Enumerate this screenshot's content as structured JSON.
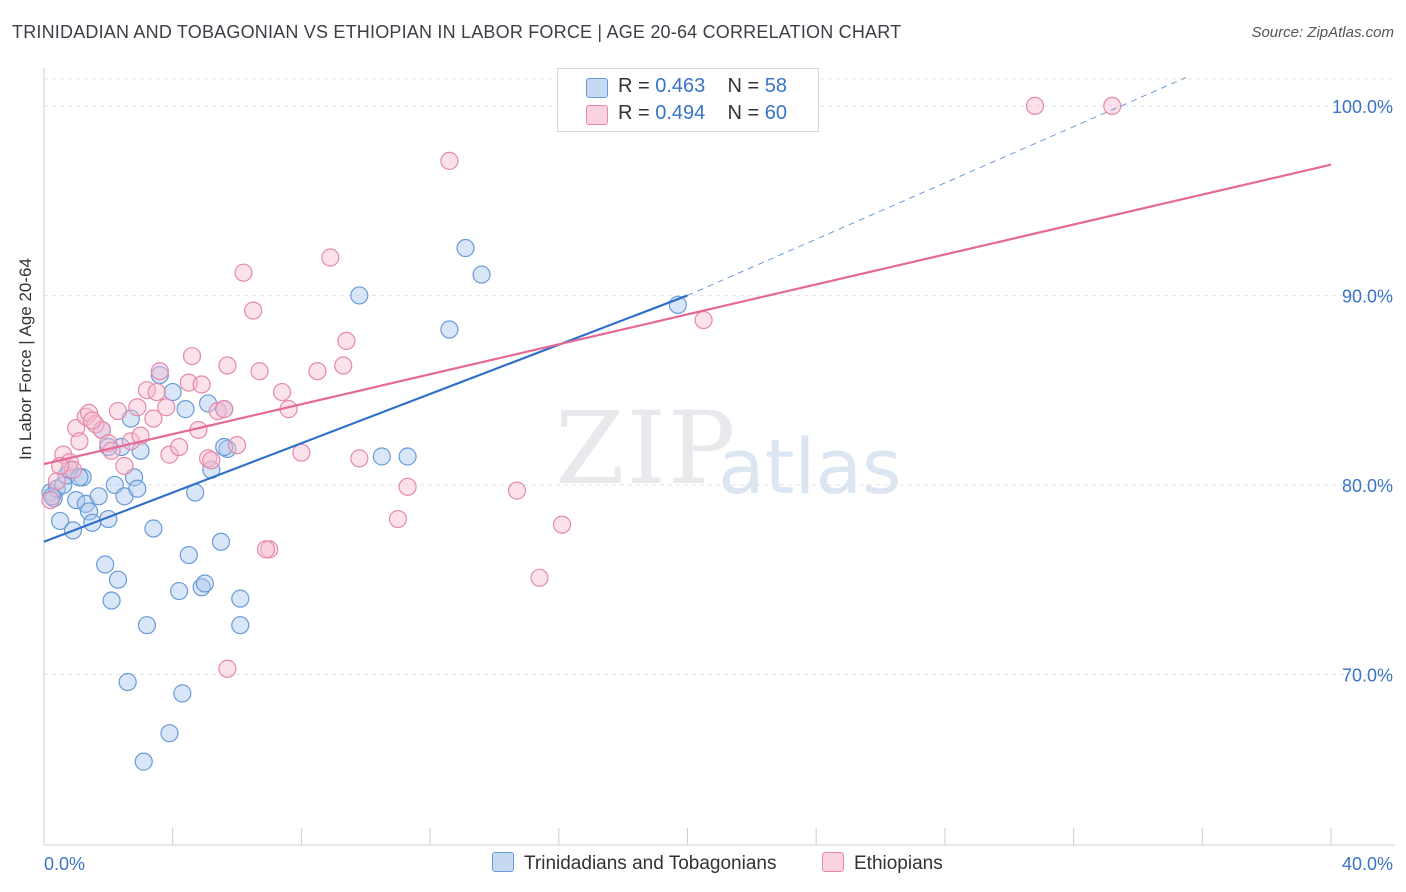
{
  "title": "TRINIDADIAN AND TOBAGONIAN VS ETHIOPIAN IN LABOR FORCE | AGE 20-64 CORRELATION CHART",
  "source": "Source: ZipAtlas.com",
  "watermark": {
    "zip": "ZIP",
    "atlas": "atlas"
  },
  "colors": {
    "blue_fill": "#aac8ef",
    "blue_stroke": "#6a9bd8",
    "blue_line": "#2f6fc9",
    "pink_fill": "#f6bcd0",
    "pink_stroke": "#e58aa9",
    "pink_line": "#e46a95",
    "tick_label": "#3a73c8",
    "grid": "#e2e2e2"
  },
  "legend": {
    "r_label": "R = ",
    "n_label": "N = ",
    "series": [
      {
        "r": "0.463",
        "n": "58"
      },
      {
        "r": "0.494",
        "n": "60"
      }
    ]
  },
  "chart_data": {
    "type": "scatter",
    "title": "TRINIDADIAN AND TOBAGONIAN VS ETHIOPIAN IN LABOR FORCE | AGE 20-64 CORRELATION CHART",
    "xlabel": "",
    "ylabel": "In Labor Force | Age 20-64",
    "xlim": [
      0,
      40
    ],
    "ylim": [
      61,
      102
    ],
    "x_tick_labels": [
      "0.0%",
      "40.0%"
    ],
    "y_ticks": [
      70,
      80,
      90,
      100
    ],
    "y_tick_labels": [
      "70.0%",
      "80.0%",
      "90.0%",
      "100.0%"
    ],
    "grid": true,
    "legend_position": "top-center",
    "series": [
      {
        "name": "Trinidadians and Tobagonians",
        "points": [
          [
            0.2,
            79.6
          ],
          [
            0.3,
            79.3
          ],
          [
            0.4,
            79.8
          ],
          [
            0.5,
            78.1
          ],
          [
            0.6,
            80.0
          ],
          [
            0.7,
            80.5
          ],
          [
            0.8,
            80.8
          ],
          [
            0.9,
            77.6
          ],
          [
            1.0,
            79.2
          ],
          [
            1.2,
            80.4
          ],
          [
            1.3,
            79.0
          ],
          [
            1.4,
            78.6
          ],
          [
            1.5,
            78.0
          ],
          [
            1.7,
            79.4
          ],
          [
            1.8,
            82.9
          ],
          [
            1.9,
            75.8
          ],
          [
            2.0,
            78.2
          ],
          [
            2.1,
            73.9
          ],
          [
            2.2,
            80.0
          ],
          [
            2.3,
            75.0
          ],
          [
            2.4,
            82.0
          ],
          [
            2.5,
            79.4
          ],
          [
            2.6,
            69.6
          ],
          [
            2.7,
            83.5
          ],
          [
            2.8,
            80.4
          ],
          [
            2.9,
            79.8
          ],
          [
            3.0,
            81.8
          ],
          [
            3.1,
            65.4
          ],
          [
            3.2,
            72.6
          ],
          [
            3.4,
            77.7
          ],
          [
            3.6,
            85.8
          ],
          [
            4.0,
            84.9
          ],
          [
            4.2,
            74.4
          ],
          [
            4.3,
            69.0
          ],
          [
            4.4,
            84.0
          ],
          [
            4.5,
            76.3
          ],
          [
            4.7,
            79.6
          ],
          [
            4.9,
            74.6
          ],
          [
            5.0,
            74.8
          ],
          [
            5.1,
            84.3
          ],
          [
            5.2,
            80.8
          ],
          [
            5.5,
            77.0
          ],
          [
            5.6,
            84.0
          ],
          [
            5.7,
            81.9
          ],
          [
            6.1,
            74.0
          ],
          [
            6.1,
            72.6
          ],
          [
            3.9,
            66.9
          ],
          [
            9.8,
            90.0
          ],
          [
            10.5,
            81.5
          ],
          [
            11.3,
            81.5
          ],
          [
            12.6,
            88.2
          ],
          [
            13.1,
            92.5
          ],
          [
            13.6,
            91.1
          ],
          [
            19.7,
            89.5
          ],
          [
            0.25,
            79.4
          ],
          [
            1.1,
            80.4
          ],
          [
            2.0,
            82.0
          ],
          [
            5.6,
            82.0
          ]
        ]
      },
      {
        "name": "Ethiopians",
        "points": [
          [
            0.2,
            79.2
          ],
          [
            0.4,
            80.2
          ],
          [
            0.6,
            81.6
          ],
          [
            0.8,
            81.2
          ],
          [
            0.9,
            80.8
          ],
          [
            1.0,
            83.0
          ],
          [
            1.1,
            82.3
          ],
          [
            1.3,
            83.6
          ],
          [
            1.4,
            83.8
          ],
          [
            1.6,
            83.2
          ],
          [
            1.8,
            82.9
          ],
          [
            2.0,
            82.2
          ],
          [
            2.1,
            81.8
          ],
          [
            2.3,
            83.9
          ],
          [
            2.5,
            81.0
          ],
          [
            2.7,
            82.3
          ],
          [
            2.9,
            84.1
          ],
          [
            3.0,
            82.6
          ],
          [
            3.2,
            85.0
          ],
          [
            3.4,
            83.5
          ],
          [
            3.6,
            86.0
          ],
          [
            3.8,
            84.1
          ],
          [
            3.9,
            81.6
          ],
          [
            4.2,
            82.0
          ],
          [
            4.5,
            85.4
          ],
          [
            4.6,
            86.8
          ],
          [
            4.8,
            82.9
          ],
          [
            4.9,
            85.3
          ],
          [
            5.1,
            81.4
          ],
          [
            5.4,
            83.9
          ],
          [
            5.6,
            84.0
          ],
          [
            5.7,
            86.3
          ],
          [
            6.0,
            82.1
          ],
          [
            6.2,
            91.2
          ],
          [
            6.5,
            89.2
          ],
          [
            6.7,
            86.0
          ],
          [
            7.0,
            76.6
          ],
          [
            7.4,
            84.9
          ],
          [
            7.6,
            84.0
          ],
          [
            8.0,
            81.7
          ],
          [
            8.5,
            86.0
          ],
          [
            8.9,
            92.0
          ],
          [
            9.3,
            86.3
          ],
          [
            9.4,
            87.6
          ],
          [
            9.8,
            81.4
          ],
          [
            11.0,
            78.2
          ],
          [
            11.3,
            79.9
          ],
          [
            12.6,
            97.1
          ],
          [
            14.7,
            79.7
          ],
          [
            15.4,
            75.1
          ],
          [
            16.1,
            77.9
          ],
          [
            20.5,
            88.7
          ],
          [
            30.8,
            100.0
          ],
          [
            33.2,
            100.0
          ],
          [
            5.7,
            70.3
          ],
          [
            6.9,
            76.6
          ],
          [
            1.5,
            83.4
          ],
          [
            5.2,
            81.3
          ],
          [
            3.5,
            84.9
          ],
          [
            0.5,
            81.0
          ]
        ]
      }
    ],
    "trendlines": [
      {
        "series": "Trinidadians and Tobagonians",
        "x": [
          0,
          20
        ],
        "y": [
          77.0,
          90.0
        ],
        "dashed_extension_to": [
          35.5,
          101.5
        ]
      },
      {
        "series": "Ethiopians",
        "x": [
          0,
          40
        ],
        "y": [
          81.1,
          96.9
        ]
      }
    ]
  }
}
